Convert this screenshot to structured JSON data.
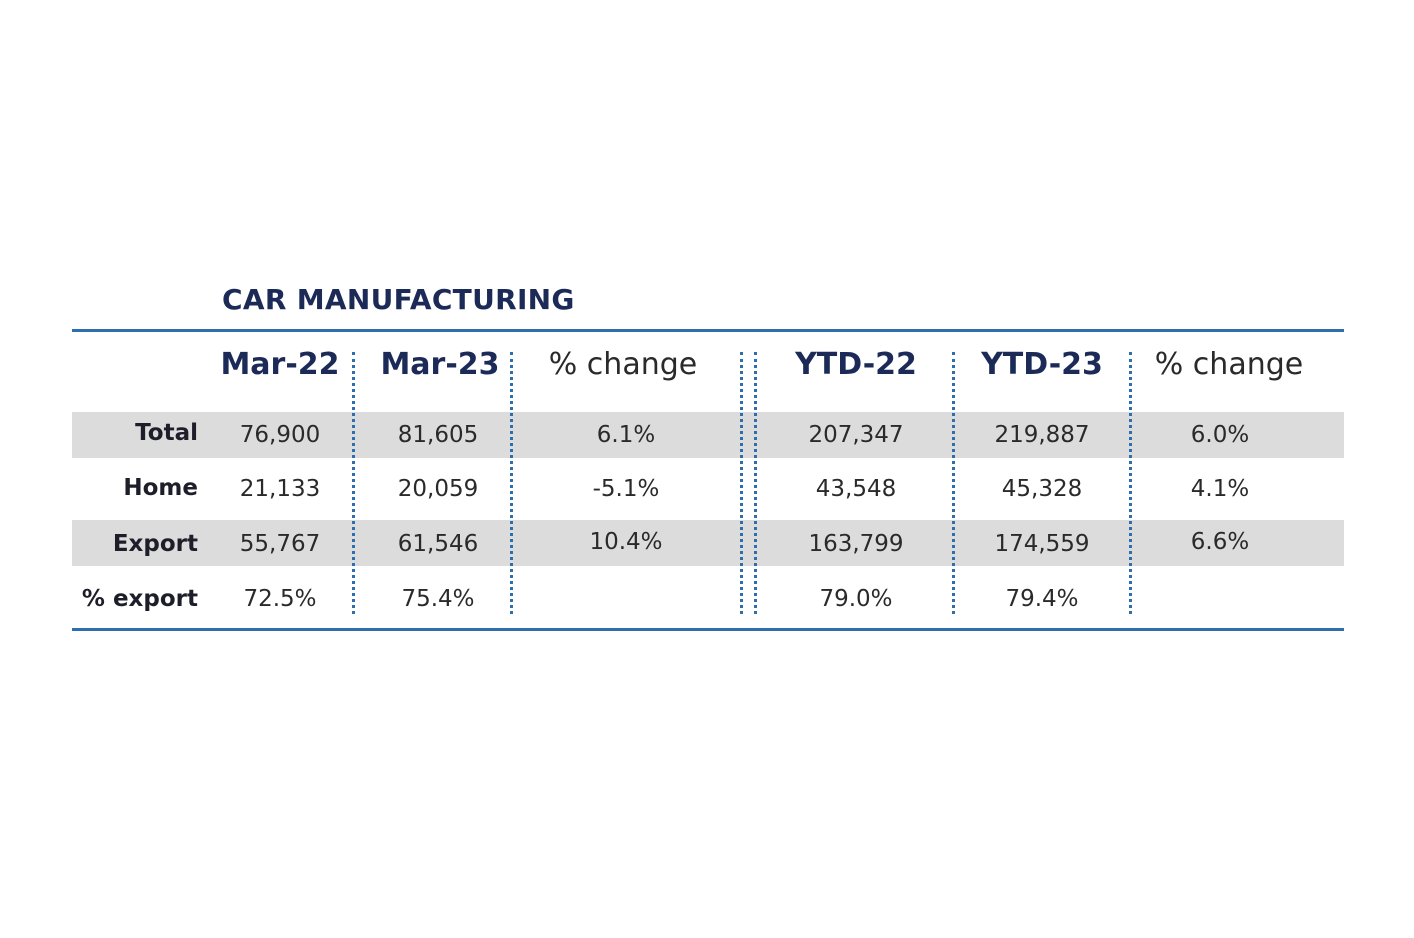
{
  "title": "CAR MANUFACTURING",
  "columns": [
    "Mar-22",
    "Mar-23",
    "% change",
    "YTD-22",
    "YTD-23",
    "% change"
  ],
  "rows": [
    {
      "label": "Total",
      "values": [
        "76,900",
        "81,605",
        "6.1%",
        "207,347",
        "219,887",
        "6.0%"
      ]
    },
    {
      "label": "Home",
      "values": [
        "21,133",
        "20,059",
        "-5.1%",
        "43,548",
        "45,328",
        "4.1%"
      ]
    },
    {
      "label": "Export",
      "values": [
        "55,767",
        "61,546",
        "10.4%",
        "163,799",
        "174,559",
        "6.6%"
      ]
    },
    {
      "label": "% export",
      "values": [
        "72.5%",
        "75.4%",
        "",
        "79.0%",
        "79.4%",
        ""
      ]
    }
  ],
  "colors": {
    "title": "#1b2a57",
    "rule": "#2d6fae",
    "band": "#dcdcdc"
  }
}
